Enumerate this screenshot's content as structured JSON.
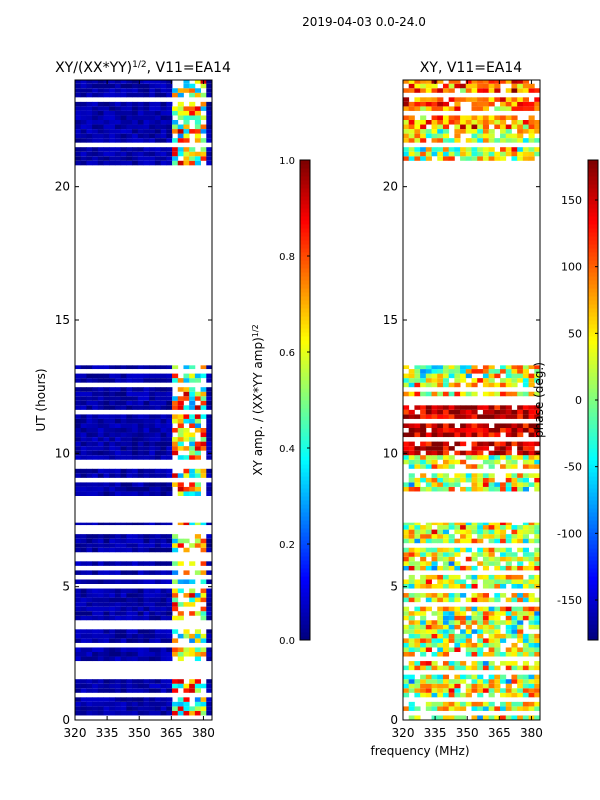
{
  "suptitle": "2019-04-03 0.0-24.0",
  "chart_data": [
    {
      "type": "heatmap",
      "title": "XY/(XX*YY)^1/2, V11=EA14",
      "title_main": "XY/(XX*YY)",
      "title_sup": "1/2",
      "title_tail": ", V11=EA14",
      "xlabel": "",
      "ylabel": "UT (hours)",
      "xlim": [
        320,
        384
      ],
      "ylim": [
        0,
        24
      ],
      "xticks": [
        320,
        335,
        350,
        365,
        380
      ],
      "yticks": [
        0,
        5,
        10,
        15,
        20
      ],
      "colormap": "jet",
      "colorbar": {
        "label": "XY amp. / (XX*YY amp)^1/2",
        "label_main": "XY amp. / (XX*YY amp)",
        "label_sup": "1/2",
        "range": [
          0.0,
          1.0
        ],
        "ticks": [
          "0.0",
          "0.2",
          "0.4",
          "0.6",
          "0.8",
          "1.0"
        ]
      },
      "data_time_ranges": [
        [
          0.0,
          7.4
        ],
        [
          8.4,
          13.3
        ],
        [
          20.8,
          24.0
        ]
      ],
      "summary": "Mostly low normalized amplitude (~0.0-0.1) across 320-363 MHz; higher values (0.3-0.9) in channels 363-380 MHz"
    },
    {
      "type": "heatmap",
      "title": "XY, V11=EA14",
      "xlabel": "frequency (MHz)",
      "ylabel": "",
      "xlim": [
        320,
        384
      ],
      "ylim": [
        0,
        24
      ],
      "xticks": [
        320,
        335,
        350,
        365,
        380
      ],
      "yticks": [
        0,
        5,
        10,
        15,
        20
      ],
      "colormap": "jet",
      "colorbar": {
        "label": "phase (deg.)",
        "range": [
          -180,
          180
        ],
        "ticks": [
          "-150",
          "-100",
          "-50",
          "0",
          "50",
          "100",
          "150"
        ]
      },
      "data_time_ranges": [
        [
          0.0,
          7.4
        ],
        [
          8.4,
          13.3
        ],
        [
          20.8,
          24.0
        ]
      ],
      "summary": "Phase near +150 deg around 10-12 UT, mixed phases elsewhere"
    }
  ]
}
